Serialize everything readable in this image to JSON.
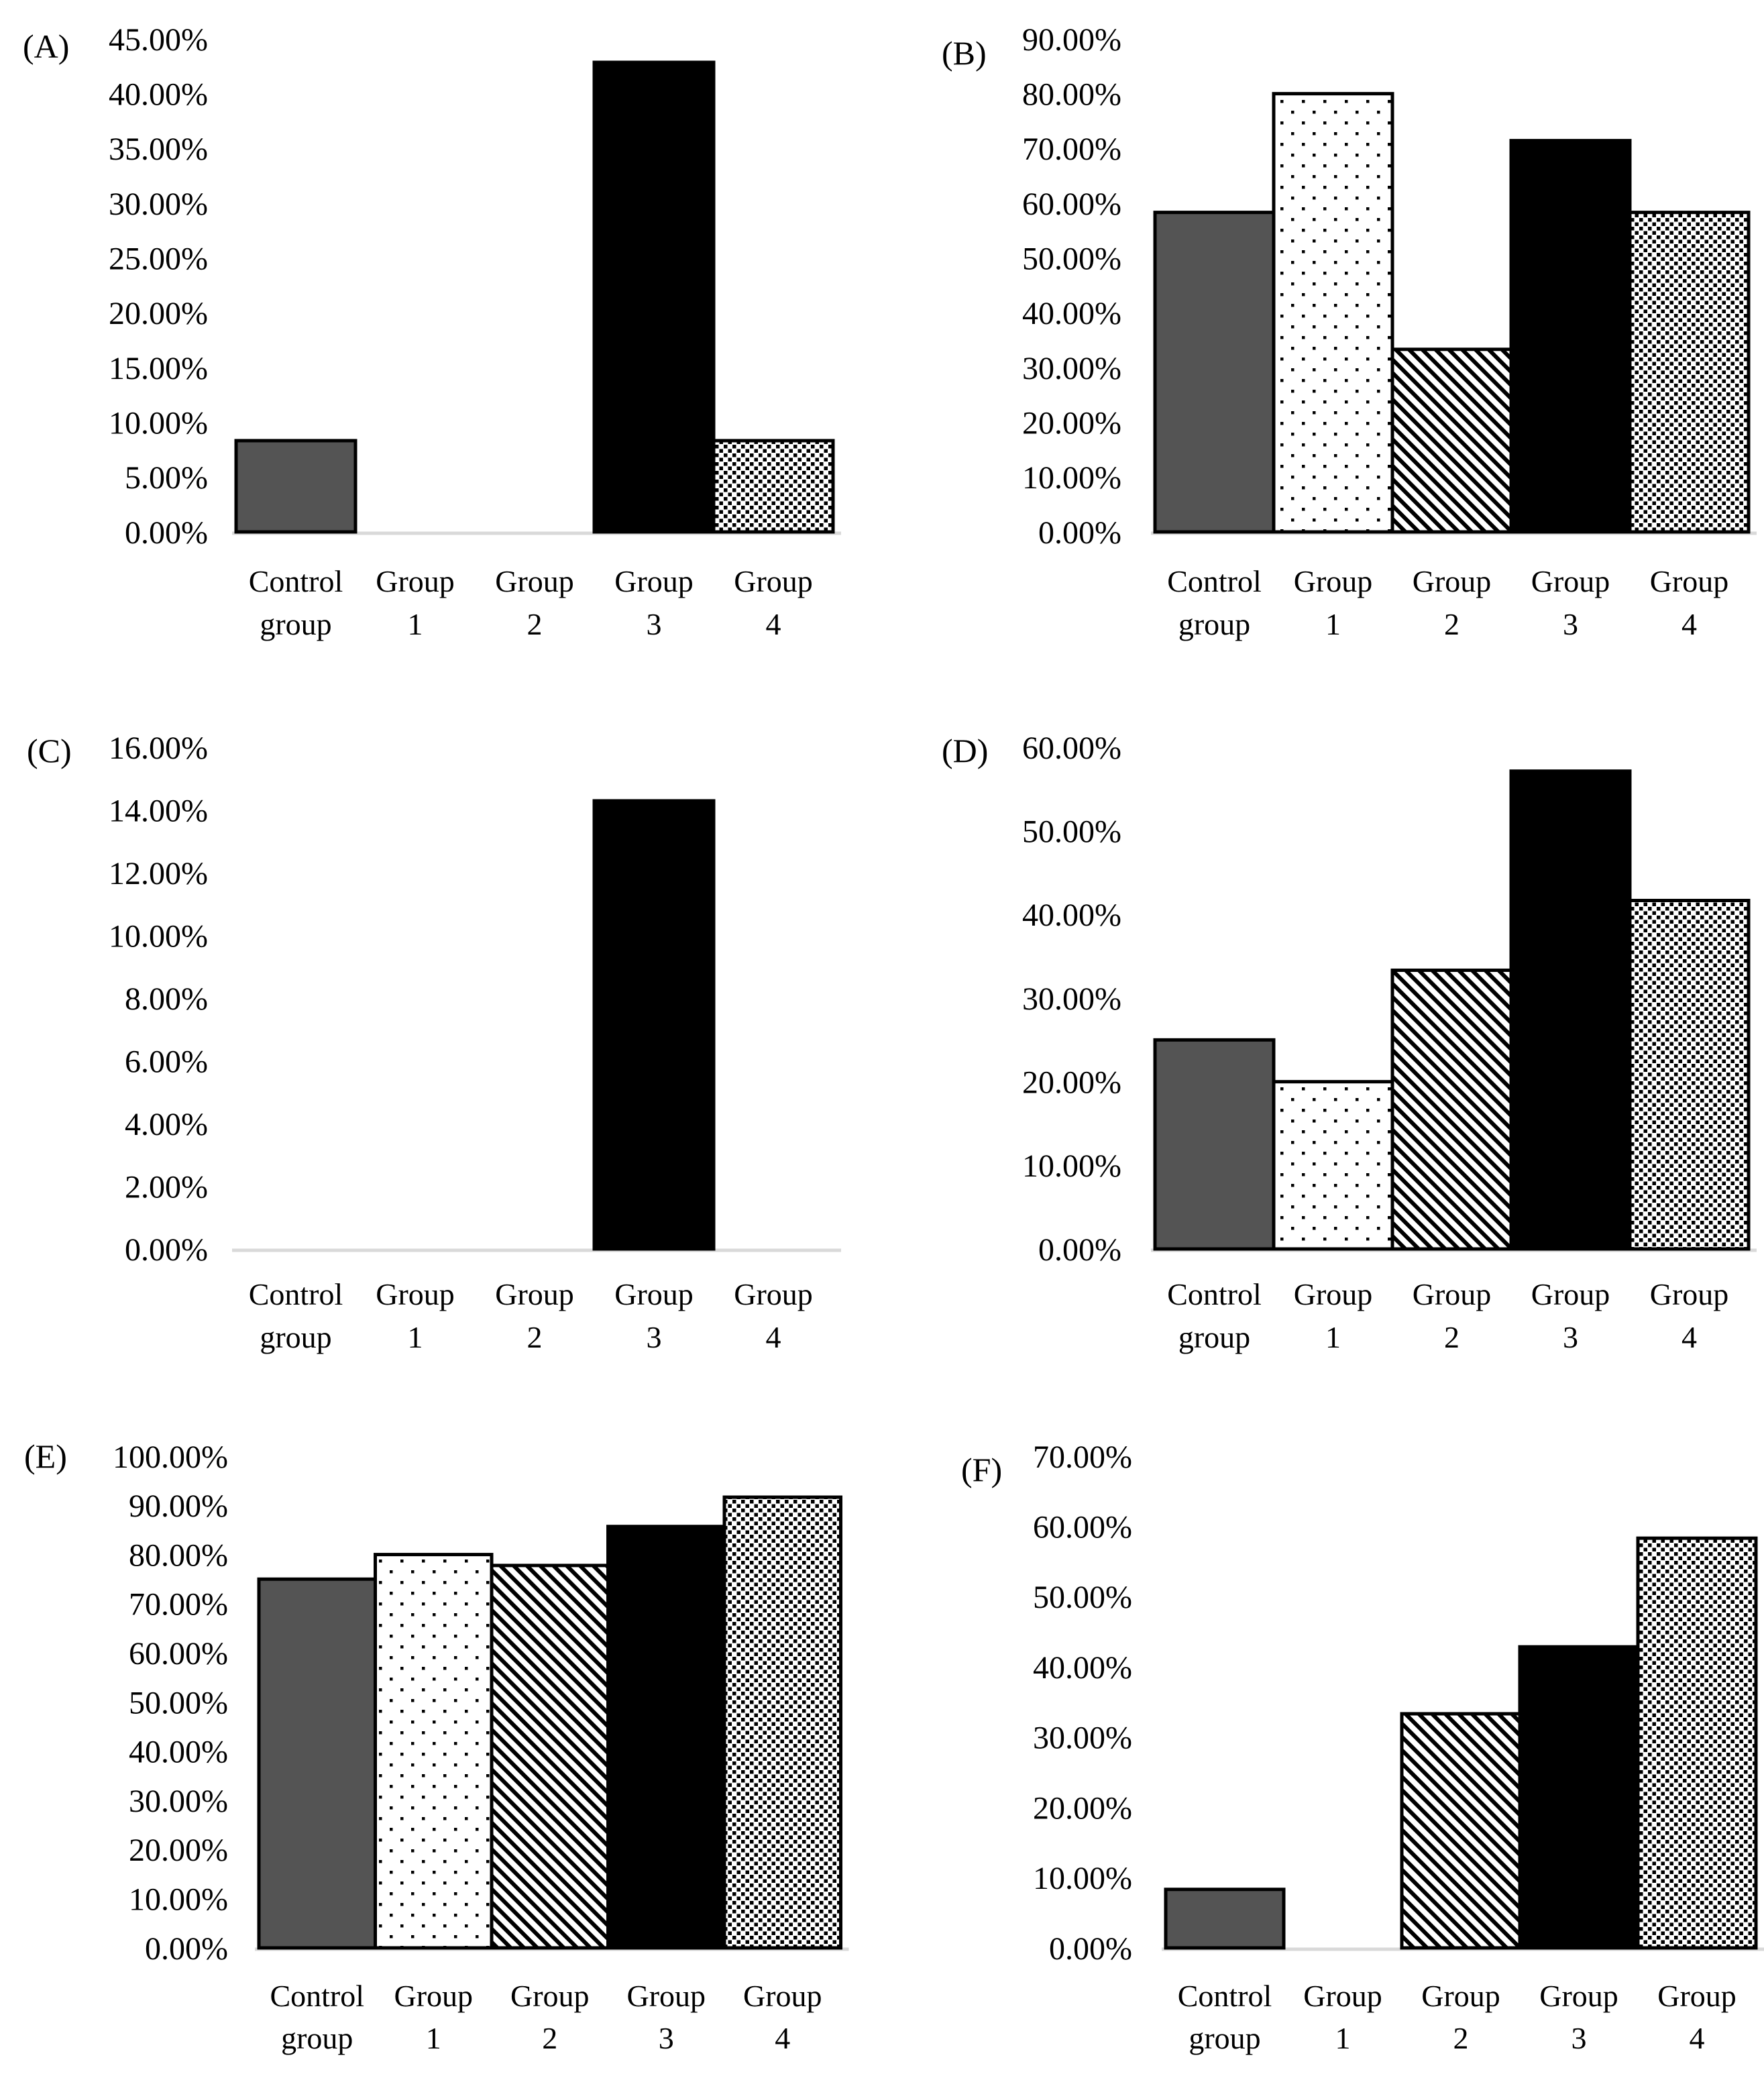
{
  "colors": {
    "bar_gray": "#545454",
    "bar_black": "#000000",
    "pattern_ink": "#000000",
    "pattern_bg": "#ffffff",
    "baseline": "#d9d9d9",
    "text": "#000000",
    "background": "#ffffff"
  },
  "chart_data": [
    {
      "id": "A",
      "panel_label": "(A)",
      "type": "bar",
      "categories": [
        "Control group",
        "Group 1",
        "Group 2",
        "Group 3",
        "Group 4"
      ],
      "category_lines": [
        [
          "Control",
          "group"
        ],
        [
          "Group",
          "1"
        ],
        [
          "Group",
          "2"
        ],
        [
          "Group",
          "3"
        ],
        [
          "Group",
          "4"
        ]
      ],
      "values": [
        8.33,
        0,
        0,
        42.86,
        8.33
      ],
      "unit": "%",
      "ylim": [
        0,
        45
      ],
      "ytick_step": 5,
      "yticks": [
        "45.00%",
        "40.00%",
        "35.00%",
        "30.00%",
        "25.00%",
        "20.00%",
        "15.00%",
        "10.00%",
        "5.00%",
        "0.00%"
      ],
      "bar_patterns": [
        "solid-gray",
        "sparse-dots",
        "diagonal-stripes",
        "solid-black",
        "dense-dots"
      ],
      "grid": false,
      "legend_position": "none"
    },
    {
      "id": "B",
      "panel_label": "(B)",
      "type": "bar",
      "categories": [
        "Control group",
        "Group 1",
        "Group 2",
        "Group 3",
        "Group 4"
      ],
      "category_lines": [
        [
          "Control",
          "group"
        ],
        [
          "Group",
          "1"
        ],
        [
          "Group",
          "2"
        ],
        [
          "Group",
          "3"
        ],
        [
          "Group",
          "4"
        ]
      ],
      "values": [
        58.33,
        80,
        33.33,
        71.43,
        58.33
      ],
      "unit": "%",
      "ylim": [
        0,
        90
      ],
      "ytick_step": 10,
      "yticks": [
        "90.00%",
        "80.00%",
        "70.00%",
        "60.00%",
        "50.00%",
        "40.00%",
        "30.00%",
        "20.00%",
        "10.00%",
        "0.00%"
      ],
      "bar_patterns": [
        "solid-gray",
        "sparse-dots",
        "diagonal-stripes",
        "solid-black",
        "dense-dots"
      ],
      "grid": false,
      "legend_position": "none"
    },
    {
      "id": "C",
      "panel_label": "(C)",
      "type": "bar",
      "categories": [
        "Control group",
        "Group 1",
        "Group 2",
        "Group 3",
        "Group 4"
      ],
      "category_lines": [
        [
          "Control",
          "group"
        ],
        [
          "Group",
          "1"
        ],
        [
          "Group",
          "2"
        ],
        [
          "Group",
          "3"
        ],
        [
          "Group",
          "4"
        ]
      ],
      "values": [
        0,
        0,
        0,
        14.29,
        0
      ],
      "unit": "%",
      "ylim": [
        0,
        16
      ],
      "ytick_step": 2,
      "yticks": [
        "16.00%",
        "14.00%",
        "12.00%",
        "10.00%",
        "8.00%",
        "6.00%",
        "4.00%",
        "2.00%",
        "0.00%"
      ],
      "bar_patterns": [
        "solid-gray",
        "sparse-dots",
        "diagonal-stripes",
        "solid-black",
        "dense-dots"
      ],
      "grid": false,
      "legend_position": "none"
    },
    {
      "id": "D",
      "panel_label": "(D)",
      "type": "bar",
      "categories": [
        "Control group",
        "Group 1",
        "Group 2",
        "Group 3",
        "Group 4"
      ],
      "category_lines": [
        [
          "Control",
          "group"
        ],
        [
          "Group",
          "1"
        ],
        [
          "Group",
          "2"
        ],
        [
          "Group",
          "3"
        ],
        [
          "Group",
          "4"
        ]
      ],
      "values": [
        25,
        20,
        33.33,
        57.14,
        41.67
      ],
      "unit": "%",
      "ylim": [
        0,
        60
      ],
      "ytick_step": 10,
      "yticks": [
        "60.00%",
        "50.00%",
        "40.00%",
        "30.00%",
        "20.00%",
        "10.00%",
        "0.00%"
      ],
      "bar_patterns": [
        "solid-gray",
        "sparse-dots",
        "diagonal-stripes",
        "solid-black",
        "dense-dots"
      ],
      "grid": false,
      "legend_position": "none"
    },
    {
      "id": "E",
      "panel_label": "(E)",
      "type": "bar",
      "categories": [
        "Control group",
        "Group 1",
        "Group 2",
        "Group 3",
        "Group 4"
      ],
      "category_lines": [
        [
          "Control",
          "group"
        ],
        [
          "Group",
          "1"
        ],
        [
          "Group",
          "2"
        ],
        [
          "Group",
          "3"
        ],
        [
          "Group",
          "4"
        ]
      ],
      "values": [
        75,
        80,
        77.78,
        85.71,
        91.67
      ],
      "unit": "%",
      "ylim": [
        0,
        100
      ],
      "ytick_step": 10,
      "yticks": [
        "100.00%",
        "90.00%",
        "80.00%",
        "70.00%",
        "60.00%",
        "50.00%",
        "40.00%",
        "30.00%",
        "20.00%",
        "10.00%",
        "0.00%"
      ],
      "bar_patterns": [
        "solid-gray",
        "sparse-dots",
        "diagonal-stripes",
        "solid-black",
        "dense-dots"
      ],
      "grid": false,
      "legend_position": "none"
    },
    {
      "id": "F",
      "panel_label": "(F)",
      "type": "bar",
      "categories": [
        "Control group",
        "Group 1",
        "Group 2",
        "Group 3",
        "Group 4"
      ],
      "category_lines": [
        [
          "Control",
          "group"
        ],
        [
          "Group",
          "1"
        ],
        [
          "Group",
          "2"
        ],
        [
          "Group",
          "3"
        ],
        [
          "Group",
          "4"
        ]
      ],
      "values": [
        8.33,
        0,
        33.33,
        42.86,
        58.33
      ],
      "unit": "%",
      "ylim": [
        0,
        70
      ],
      "ytick_step": 10,
      "yticks": [
        "70.00%",
        "60.00%",
        "50.00%",
        "40.00%",
        "30.00%",
        "20.00%",
        "10.00%",
        "0.00%"
      ],
      "bar_patterns": [
        "solid-gray",
        "sparse-dots",
        "diagonal-stripes",
        "solid-black",
        "dense-dots"
      ],
      "grid": false,
      "legend_position": "none"
    }
  ]
}
